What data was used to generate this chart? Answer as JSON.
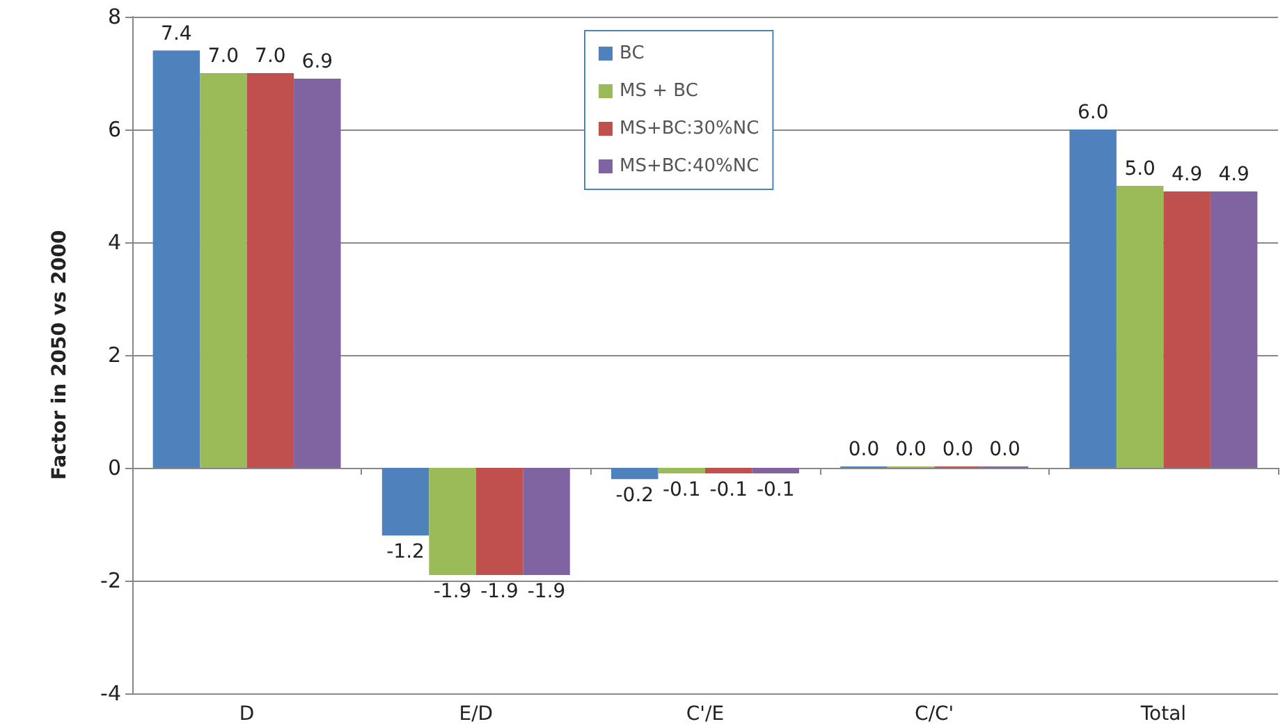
{
  "chart_data": {
    "type": "bar",
    "ylabel": "Factor in 2050 vs 2000",
    "categories": [
      "D",
      "E/D",
      "C'/E",
      "C/C'",
      "Total"
    ],
    "series": [
      {
        "name": "BC",
        "color": "#4f81bd",
        "values": [
          7.4,
          -1.2,
          -0.2,
          0.0,
          6.0
        ],
        "value_labels": [
          "7.4",
          "-1.2",
          "-0.2",
          "0.0",
          "6.0"
        ]
      },
      {
        "name": "MS + BC",
        "color": "#9bbb59",
        "values": [
          7.0,
          -1.9,
          -0.1,
          0.0,
          5.0
        ],
        "value_labels": [
          "7.0",
          "-1.9",
          "-0.1",
          "0.0",
          "5.0"
        ]
      },
      {
        "name": "MS+BC:30%NC",
        "color": "#c0504d",
        "values": [
          7.0,
          -1.9,
          -0.1,
          0.0,
          4.9
        ],
        "value_labels": [
          "7.0",
          "-1.9",
          "-0.1",
          "0.0",
          "4.9"
        ]
      },
      {
        "name": "MS+BC:40%NC",
        "color": "#8064a2",
        "values": [
          6.9,
          -1.9,
          -0.1,
          0.0,
          4.9
        ],
        "value_labels": [
          "6.9",
          "-1.9",
          "-0.1",
          "0.0",
          "4.9"
        ]
      }
    ],
    "ylim": [
      -4,
      8
    ],
    "yticks": [
      -4,
      -2,
      0,
      2,
      4,
      6,
      8
    ],
    "grid": "y",
    "legend": "top"
  }
}
